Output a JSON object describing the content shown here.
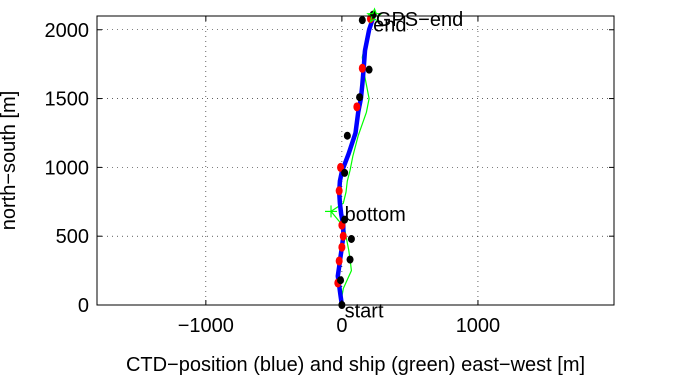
{
  "chart_data": {
    "type": "line",
    "xlabel": "CTD−position (blue) and ship (green) east−west [m]",
    "ylabel": "north−south [m]",
    "xlim": [
      -1800,
      2000
    ],
    "ylim": [
      0,
      2100
    ],
    "x_ticks": [
      -1000,
      0,
      1000
    ],
    "x_tick_labels": [
      "−1000",
      "0",
      "1000"
    ],
    "y_ticks": [
      0,
      500,
      1000,
      1500,
      2000
    ],
    "y_tick_labels": [
      "0",
      "500",
      "1000",
      "1500",
      "2000"
    ],
    "grid": true,
    "grid_style": "dotted",
    "colors": {
      "ctd": "#0000ff",
      "ship": "#00ff00",
      "red_markers": "#ff0000",
      "black_markers": "#000000",
      "gps_end_marker": "#00ff00"
    },
    "series": [
      {
        "name": "CTD-position",
        "x": [
          0,
          -10,
          -20,
          -30,
          -20,
          -10,
          0,
          10,
          10,
          -5,
          -15,
          -20,
          -15,
          0,
          50,
          100,
          120,
          140,
          150,
          160,
          170,
          200,
          230
        ],
        "y": [
          0,
          70,
          140,
          210,
          280,
          350,
          420,
          500,
          580,
          660,
          740,
          820,
          900,
          970,
          1100,
          1250,
          1400,
          1500,
          1600,
          1720,
          1850,
          2000,
          2090
        ]
      },
      {
        "name": "ship",
        "x": [
          0,
          0,
          10,
          70,
          60,
          50,
          30,
          20,
          -80,
          10,
          30,
          40,
          60,
          80,
          120,
          180,
          200,
          180,
          160,
          150,
          180,
          240
        ],
        "y": [
          0,
          60,
          120,
          250,
          330,
          400,
          500,
          560,
          680,
          740,
          820,
          900,
          980,
          1080,
          1230,
          1400,
          1500,
          1600,
          1700,
          1800,
          1950,
          2100
        ]
      },
      {
        "name": "red markers",
        "x": [
          -30,
          -20,
          0,
          10,
          0,
          -20,
          -10,
          110,
          150,
          210
        ],
        "y": [
          160,
          320,
          420,
          500,
          580,
          830,
          1000,
          1440,
          1720,
          2080
        ]
      },
      {
        "name": "black markers",
        "x": [
          0,
          -10,
          60,
          70,
          20,
          20,
          40,
          130,
          200,
          150,
          230
        ],
        "y": [
          0,
          180,
          330,
          480,
          620,
          960,
          1230,
          1510,
          1710,
          2070,
          2110
        ]
      }
    ],
    "annotations": [
      {
        "text": "start",
        "x": 20,
        "y": -40
      },
      {
        "text": "bottom",
        "x": 20,
        "y": 660
      },
      {
        "text": "end",
        "x": 230,
        "y": 2040
      },
      {
        "text": "GPS−end",
        "x": 250,
        "y": 2080
      }
    ],
    "gps_end": {
      "x": 240,
      "y": 2100
    },
    "bottom_marker": {
      "x": -80,
      "y": 680
    }
  }
}
